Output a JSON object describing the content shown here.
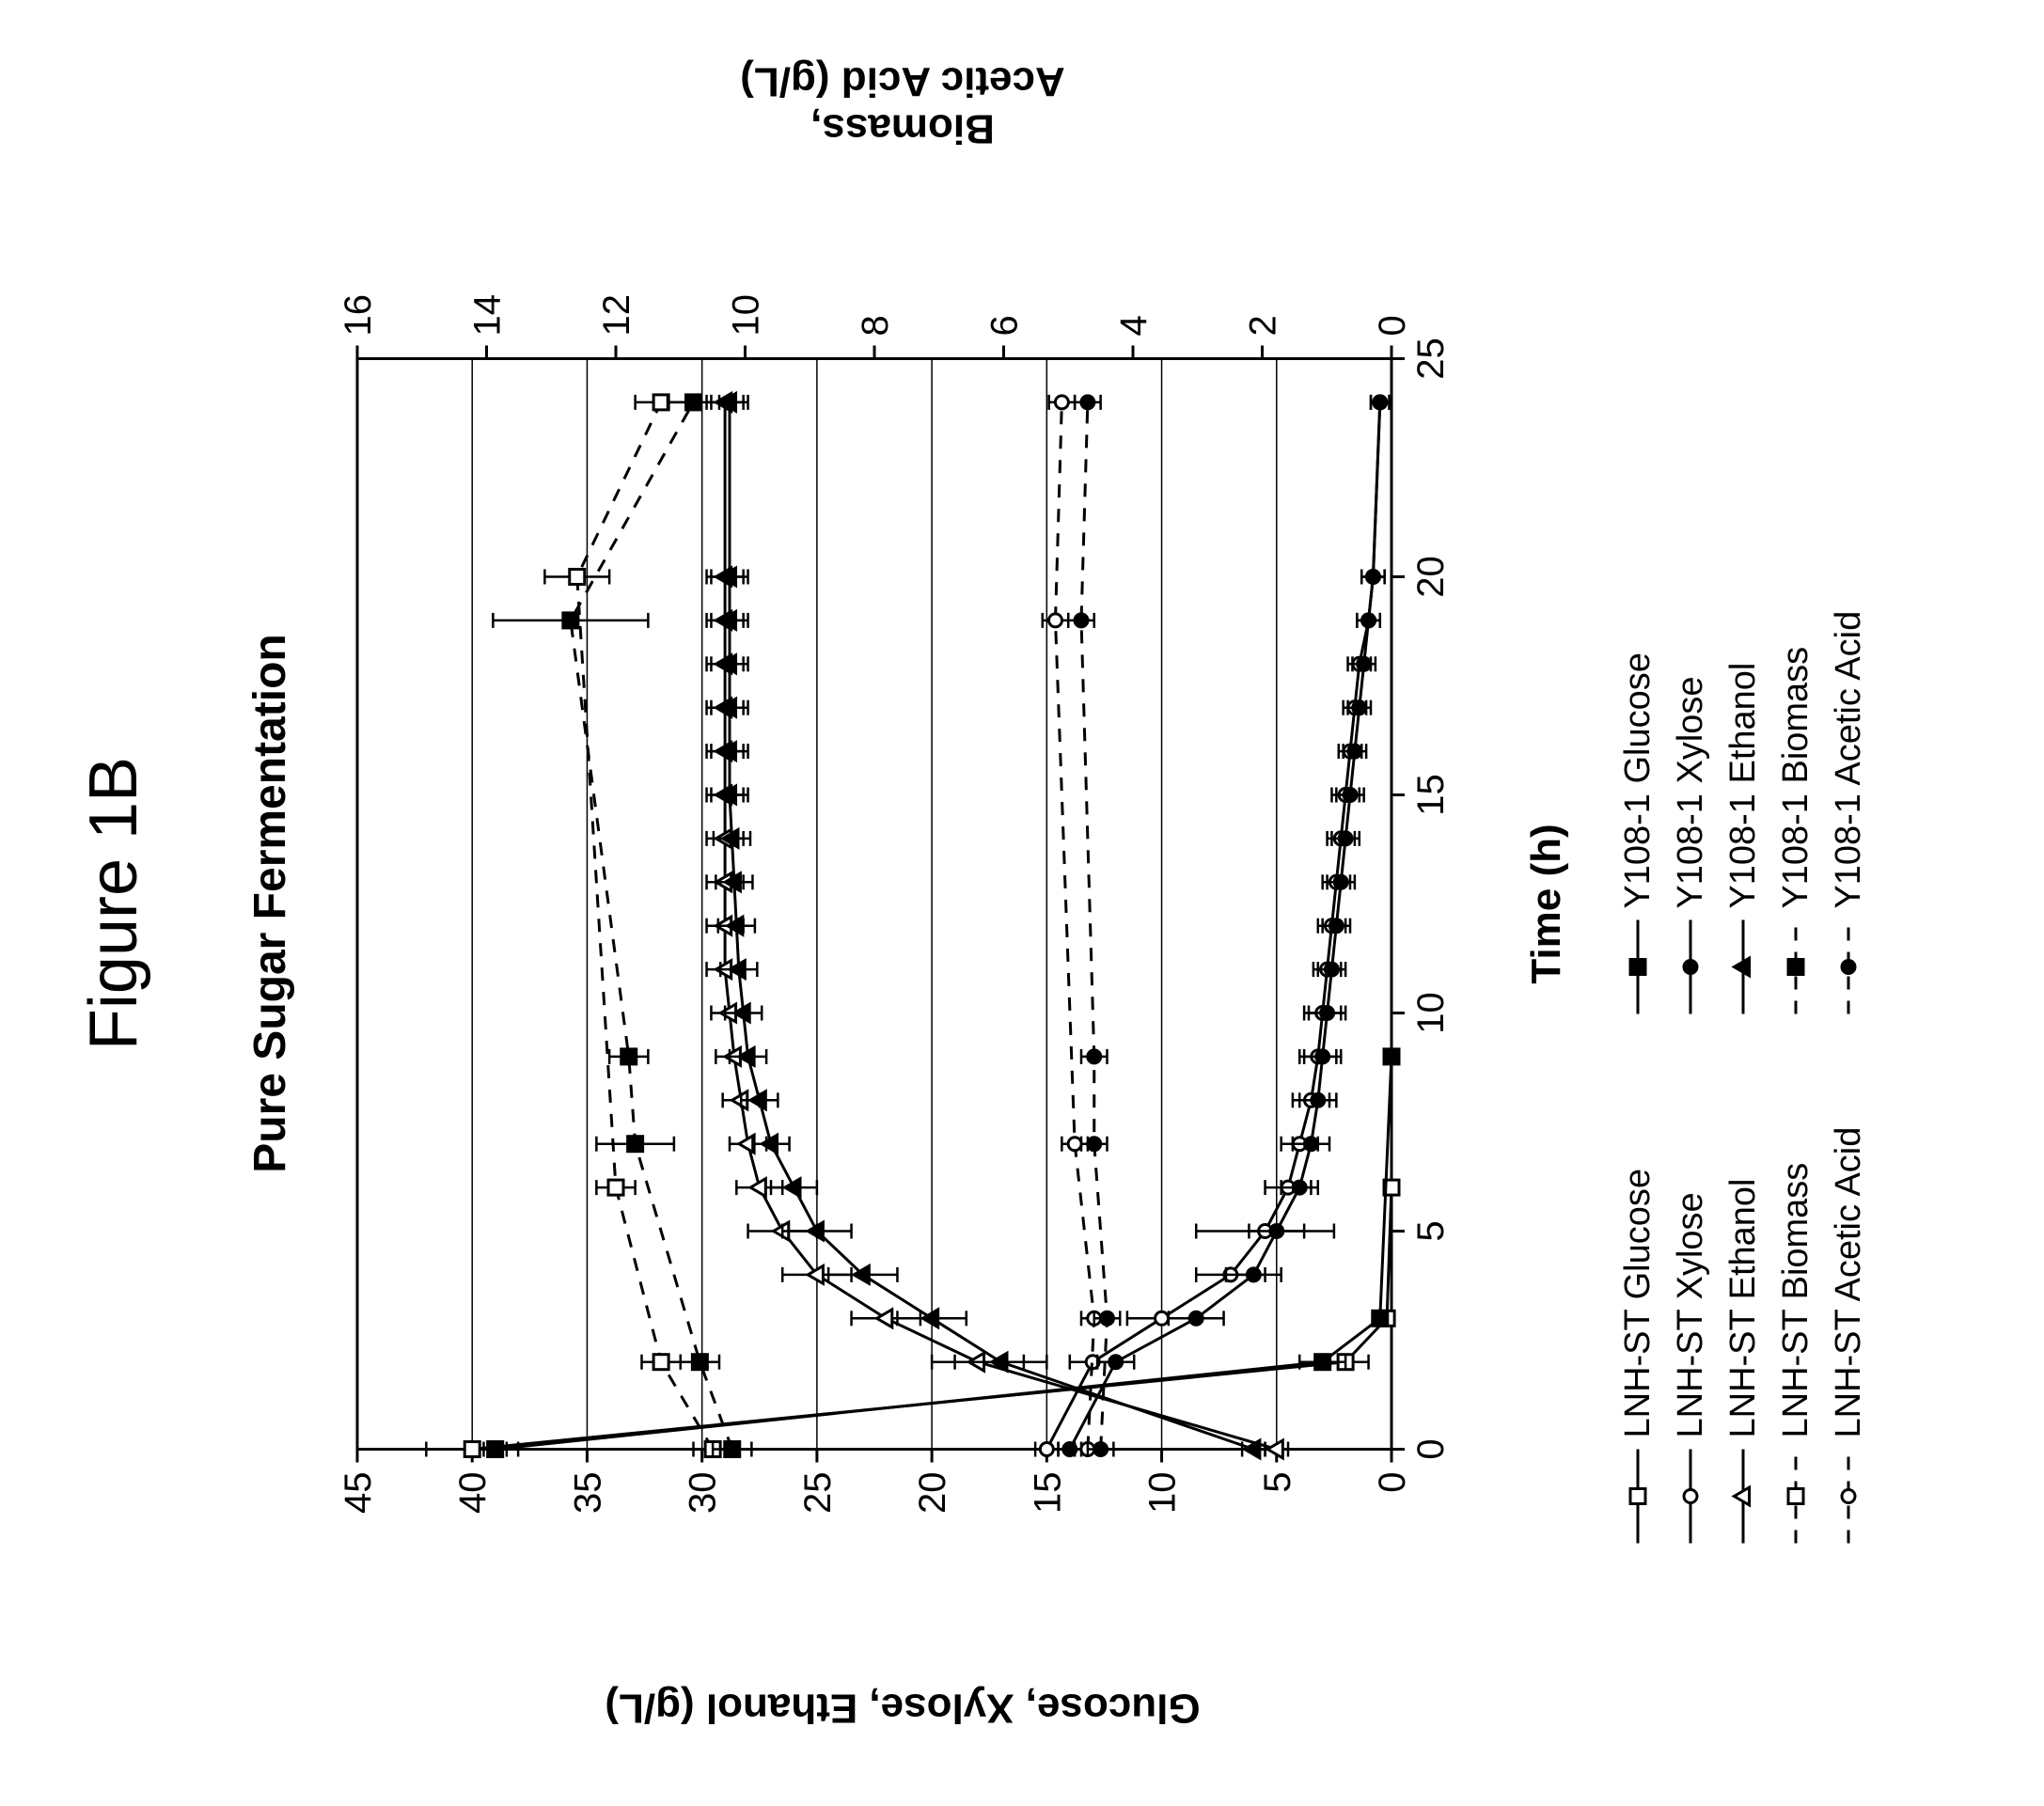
{
  "figure_label": "Figure 1B",
  "chart": {
    "type": "line",
    "title": "Pure Sugar Fermentation",
    "background_color": "#ffffff",
    "grid_color": "#000000",
    "axis_color": "#000000",
    "title_fontsize": 48,
    "label_fontsize": 44,
    "tick_fontsize": 40,
    "x_axis": {
      "label": "Time (h)",
      "lim": [
        0,
        25
      ],
      "ticks": [
        0,
        5,
        10,
        15,
        20,
        25
      ]
    },
    "y_left": {
      "label": "Glucose, Xylose, Ethanol (g/L)",
      "lim": [
        0,
        45
      ],
      "ticks": [
        0,
        5,
        10,
        15,
        20,
        25,
        30,
        35,
        40,
        45
      ]
    },
    "y_right": {
      "label": "Biomass,\nAcetic Acid (g/L)",
      "lim": [
        0,
        16
      ],
      "ticks": [
        0,
        2,
        4,
        6,
        8,
        10,
        12,
        14,
        16
      ]
    },
    "series": [
      {
        "id": "lnh_glucose",
        "label": "LNH-ST Glucose",
        "axis": "left",
        "color": "#000000",
        "marker": "square-open",
        "dash": "solid",
        "linewidth": 3,
        "markersize": 16,
        "x": [
          0,
          2,
          3,
          6
        ],
        "y": [
          40,
          2,
          0.2,
          0
        ],
        "err": [
          2,
          1,
          0,
          0
        ]
      },
      {
        "id": "lnh_xylose",
        "label": "LNH-ST Xylose",
        "axis": "left",
        "color": "#000000",
        "marker": "circle-open",
        "dash": "solid",
        "linewidth": 3,
        "markersize": 14,
        "x": [
          0,
          2,
          3,
          4,
          5,
          6,
          7,
          8,
          9,
          10,
          11,
          12,
          13,
          14,
          15,
          16,
          17,
          18,
          19,
          20,
          24
        ],
        "y": [
          15,
          13,
          10,
          7,
          5.5,
          4.5,
          4,
          3.5,
          3.2,
          3,
          2.8,
          2.6,
          2.4,
          2.2,
          2,
          1.8,
          1.6,
          1.4,
          1,
          0.8,
          0.5
        ],
        "err": [
          0.5,
          1,
          1.5,
          1.5,
          3,
          1,
          0.8,
          0.8,
          0.8,
          0.8,
          0.6,
          0.6,
          0.6,
          0.6,
          0.6,
          0.5,
          0.5,
          0.5,
          0.5,
          0.5,
          0.4
        ]
      },
      {
        "id": "lnh_ethanol",
        "label": "LNH-ST Ethanol",
        "axis": "left",
        "color": "#000000",
        "marker": "triangle-open",
        "dash": "solid",
        "linewidth": 3,
        "markersize": 16,
        "x": [
          0,
          2,
          3,
          4,
          5,
          6,
          7,
          8,
          9,
          10,
          11,
          12,
          13,
          14,
          15,
          16,
          17,
          18,
          19,
          20,
          24
        ],
        "y": [
          5,
          18,
          22,
          25,
          26.5,
          27.5,
          28,
          28.3,
          28.6,
          28.8,
          29,
          29,
          29,
          29,
          29,
          29,
          29,
          29,
          29,
          29,
          29
        ],
        "err": [
          0.5,
          2,
          1.5,
          1.5,
          1.5,
          1,
          0.8,
          0.8,
          0.8,
          0.8,
          0.8,
          0.8,
          0.8,
          0.8,
          0.8,
          0.8,
          0.8,
          0.8,
          0.8,
          0.8,
          0.8
        ]
      },
      {
        "id": "lnh_biomass",
        "label": "LNH-ST Biomass",
        "axis": "right",
        "color": "#000000",
        "marker": "square-open",
        "dash": "dashed",
        "linewidth": 3,
        "markersize": 16,
        "x": [
          0,
          2,
          6,
          20,
          24
        ],
        "y": [
          10.5,
          11.3,
          12,
          12.6,
          11.3
        ],
        "err": [
          0.3,
          0.3,
          0.3,
          0.5,
          0.4
        ]
      },
      {
        "id": "lnh_acetic",
        "label": "LNH-ST Acetic Acid",
        "axis": "right",
        "color": "#000000",
        "marker": "circle-open",
        "dash": "dashed",
        "linewidth": 3,
        "markersize": 14,
        "x": [
          0,
          3,
          7,
          19,
          24
        ],
        "y": [
          4.7,
          4.6,
          4.9,
          5.2,
          5.1
        ],
        "err": [
          0.2,
          0.2,
          0.2,
          0.2,
          0.2
        ]
      },
      {
        "id": "y108_glucose",
        "label": "Y108-1 Glucose",
        "axis": "left",
        "color": "#000000",
        "marker": "square-filled",
        "dash": "solid",
        "linewidth": 3,
        "markersize": 16,
        "x": [
          0,
          2,
          3,
          9
        ],
        "y": [
          39,
          3,
          0.5,
          0
        ],
        "err": [
          0.5,
          1,
          0.3,
          0
        ]
      },
      {
        "id": "y108_xylose",
        "label": "Y108-1 Xylose",
        "axis": "left",
        "color": "#000000",
        "marker": "circle-filled",
        "dash": "solid",
        "linewidth": 3,
        "markersize": 14,
        "x": [
          0,
          2,
          3,
          4,
          5,
          6,
          7,
          8,
          9,
          10,
          11,
          12,
          13,
          14,
          15,
          16,
          17,
          18,
          19,
          20,
          24
        ],
        "y": [
          14,
          12,
          8.5,
          6,
          5,
          4,
          3.5,
          3.2,
          3,
          2.8,
          2.6,
          2.4,
          2.2,
          2,
          1.8,
          1.6,
          1.4,
          1.2,
          1,
          0.8,
          0.5
        ],
        "err": [
          0.5,
          0.8,
          1.2,
          1.2,
          1.2,
          0.8,
          0.8,
          0.8,
          0.8,
          0.8,
          0.6,
          0.6,
          0.6,
          0.6,
          0.6,
          0.5,
          0.5,
          0.5,
          0.5,
          0.5,
          0.4
        ]
      },
      {
        "id": "y108_ethanol",
        "label": "Y108-1 Ethanol",
        "axis": "left",
        "color": "#000000",
        "marker": "triangle-filled",
        "dash": "solid",
        "linewidth": 3,
        "markersize": 16,
        "x": [
          0,
          2,
          3,
          4,
          5,
          6,
          7,
          8,
          9,
          10,
          11,
          12,
          13,
          14,
          15,
          16,
          17,
          18,
          19,
          20,
          24
        ],
        "y": [
          6,
          17,
          20,
          23,
          25,
          26,
          27,
          27.5,
          28,
          28.2,
          28.4,
          28.5,
          28.6,
          28.7,
          28.8,
          28.8,
          28.8,
          28.8,
          28.8,
          28.8,
          28.8
        ],
        "err": [
          0.5,
          2,
          1.5,
          1.5,
          1.5,
          1,
          0.8,
          0.8,
          0.8,
          0.8,
          0.8,
          0.8,
          0.8,
          0.8,
          0.8,
          0.8,
          0.8,
          0.8,
          0.8,
          0.8,
          0.8
        ]
      },
      {
        "id": "y108_biomass",
        "label": "Y108-1 Biomass",
        "axis": "right",
        "color": "#000000",
        "marker": "square-filled",
        "dash": "dashed",
        "linewidth": 3,
        "markersize": 16,
        "x": [
          0,
          2,
          7,
          9,
          19,
          24
        ],
        "y": [
          10.2,
          10.7,
          11.7,
          11.8,
          12.7,
          10.8
        ],
        "err": [
          0.3,
          0.3,
          0.6,
          0.3,
          1.2,
          0.4
        ]
      },
      {
        "id": "y108_acetic",
        "label": "Y108-1 Acetic Acid",
        "axis": "right",
        "color": "#000000",
        "marker": "circle-filled",
        "dash": "dashed",
        "linewidth": 3,
        "markersize": 14,
        "x": [
          0,
          3,
          7,
          9,
          19,
          24
        ],
        "y": [
          4.5,
          4.4,
          4.6,
          4.6,
          4.8,
          4.7
        ],
        "err": [
          0.2,
          0.2,
          0.2,
          0.2,
          0.2,
          0.2
        ]
      }
    ],
    "legend_columns": [
      [
        "lnh_glucose",
        "lnh_xylose",
        "lnh_ethanol",
        "lnh_biomass",
        "lnh_acetic"
      ],
      [
        "y108_glucose",
        "y108_xylose",
        "y108_ethanol",
        "y108_biomass",
        "y108_acetic"
      ]
    ]
  }
}
